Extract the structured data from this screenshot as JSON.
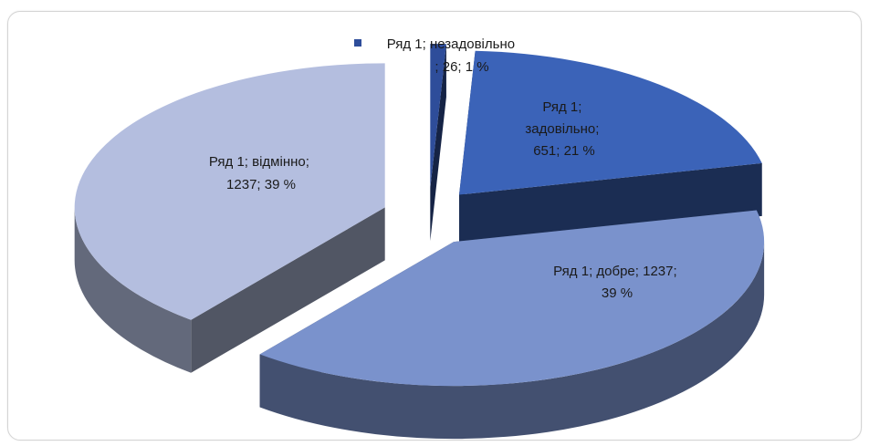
{
  "chart_data": {
    "type": "pie",
    "style": "3d-exploded",
    "series_name": "Ряд 1",
    "slices": [
      {
        "key": "nezadovilno",
        "category": "незадовільно",
        "value": 26,
        "percent": "1 %",
        "color": "#2e4d9a",
        "label_lines": [
          "Ряд 1; незадовільно",
          "; 26; 1 %"
        ]
      },
      {
        "key": "zadovilno",
        "category": "задовільно",
        "value": 651,
        "percent": "21 %",
        "color": "#3b63b8",
        "label_lines": [
          "Ряд 1;",
          "задовільно;",
          "651; 21 %"
        ]
      },
      {
        "key": "dobre",
        "category": "добре",
        "value": 1237,
        "percent": "39 %",
        "color": "#7a92cc",
        "label_lines": [
          "Ряд 1; добре; 1237;",
          "39 %"
        ]
      },
      {
        "key": "vidminno",
        "category": "відмінно",
        "value": 1237,
        "percent": "39 %",
        "color": "#b4bedf",
        "label_lines": [
          "Ряд 1; відмінно;",
          "1237; 39 %"
        ]
      }
    ],
    "legend_position": "top-center",
    "title": ""
  }
}
